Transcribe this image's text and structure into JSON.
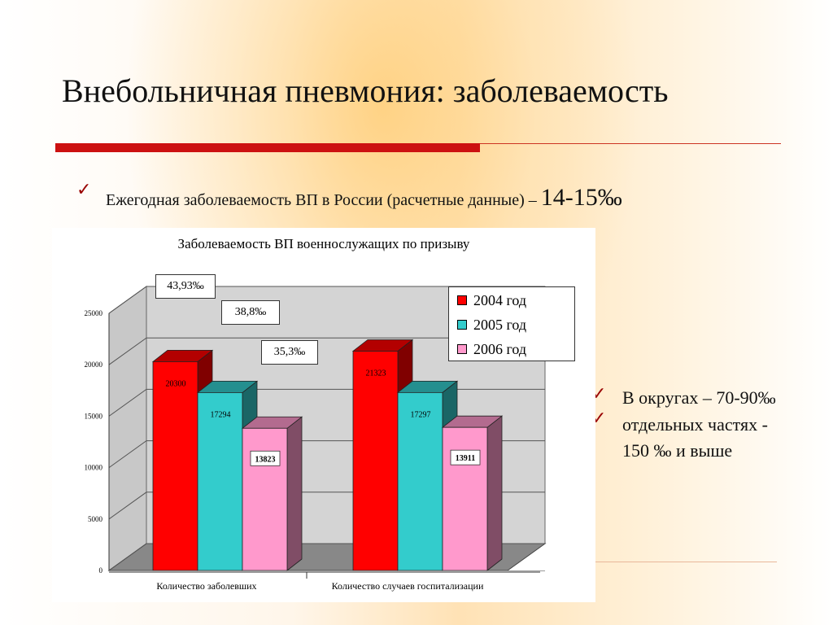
{
  "slide": {
    "title": "Внебольничная пневмония: заболеваемость",
    "bullet1_text": "Ежегодная заболеваемость ВП в России (расчетные данные) – ",
    "bullet1_value": "14-15‰",
    "bullet2": "В округах – 70-90‰",
    "bullet3": "отдельных частях - 150 ‰ и выше",
    "check_glyph": "✓"
  },
  "colors": {
    "accent_red": "#cc1111",
    "check": "#990000"
  },
  "chart_data": {
    "type": "bar",
    "title": "Заболеваемость ВП военнослужащих по призыву",
    "categories": [
      "Количество заболевших",
      "Количество случаев госпитализации"
    ],
    "series": [
      {
        "name": "2004 год",
        "values": [
          20300,
          21323
        ],
        "color": "#ff0000",
        "labels": [
          "20300",
          "21323"
        ]
      },
      {
        "name": "2005 год",
        "values": [
          17294,
          17297
        ],
        "color": "#33cccc",
        "labels": [
          "17294",
          "17297"
        ]
      },
      {
        "name": "2006 год",
        "values": [
          13823,
          13911
        ],
        "color": "#ff99cc",
        "labels": [
          "13823",
          "13911"
        ]
      }
    ],
    "ylim": [
      0,
      25000
    ],
    "yticks": [
      "0",
      "5000",
      "10000",
      "15000",
      "20000",
      "25000"
    ],
    "grid": true,
    "legend": "top-right",
    "annotations": [
      "43,93‰",
      "38,8‰",
      "35,3‰"
    ]
  }
}
